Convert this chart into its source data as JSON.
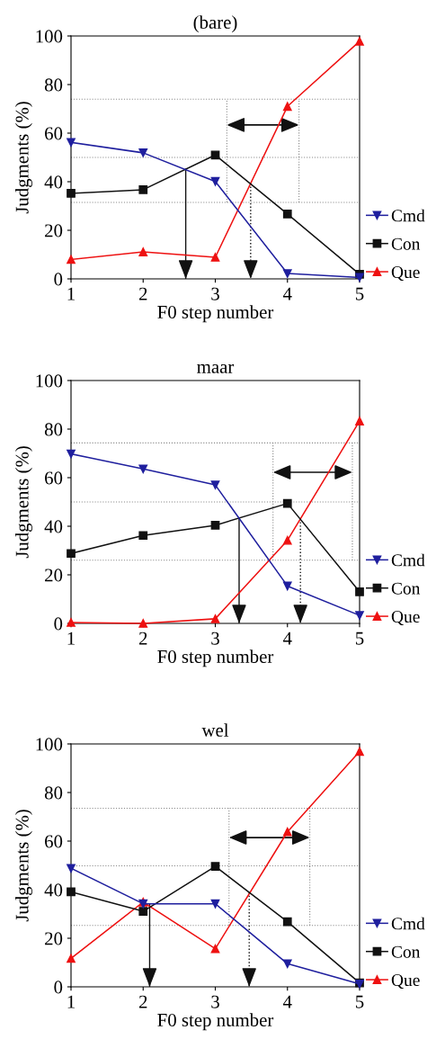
{
  "chart_data": [
    {
      "type": "line",
      "title": "(bare)",
      "xlabel": "F0 step number",
      "ylabel": "Judgments (%)",
      "x": [
        1,
        2,
        3,
        4,
        5
      ],
      "xlim": [
        1,
        5
      ],
      "xticks": [
        1,
        2,
        3,
        4,
        5
      ],
      "ylim": [
        0,
        100
      ],
      "yticks": [
        0,
        20,
        40,
        60,
        80,
        100
      ],
      "grid": false,
      "legend": "right",
      "series": [
        {
          "name": "Cmd",
          "color": "#1f1f9e",
          "marker": "triangle_down",
          "values": [
            56.2,
            51.9,
            40.1,
            2.2,
            0.6
          ]
        },
        {
          "name": "Con",
          "color": "#111111",
          "marker": "square",
          "values": [
            35.2,
            36.7,
            51,
            26.7,
            1.9
          ]
        },
        {
          "name": "Que",
          "color": "#ee1111",
          "marker": "triangle",
          "values": [
            8,
            11.1,
            8.9,
            71,
            97.8
          ]
        }
      ],
      "ref_lines": [
        {
          "axis": "y",
          "value": 74,
          "line_style": "dotted",
          "color": "#888888"
        },
        {
          "axis": "y",
          "value": 50,
          "line_style": "dotted",
          "color": "#888888"
        },
        {
          "axis": "y",
          "value": 31.5,
          "line_style": "dotted",
          "color": "#888888"
        },
        {
          "axis": "x",
          "value": 2.59,
          "line_style": "solid",
          "color": "#111111"
        },
        {
          "axis": "x",
          "value": 3.49,
          "line_style": "dotted",
          "color": "#111111"
        },
        {
          "axis": "x",
          "value": 3.16,
          "line_style": "dotted",
          "color": "#888888"
        },
        {
          "axis": "x",
          "value": 4.16,
          "line_style": "dotted",
          "color": "#888888"
        }
      ]
    },
    {
      "type": "line",
      "title": "maar",
      "xlabel": "F0 step number",
      "ylabel": "Judgments (%)",
      "x": [
        1,
        2,
        3,
        4,
        5
      ],
      "xlim": [
        1,
        5
      ],
      "xticks": [
        1,
        2,
        3,
        4,
        5
      ],
      "ylim": [
        0,
        100
      ],
      "yticks": [
        0,
        20,
        40,
        60,
        80,
        100
      ],
      "grid": false,
      "legend": "right",
      "series": [
        {
          "name": "Cmd",
          "color": "#1f1f9e",
          "marker": "triangle_down",
          "values": [
            69.8,
            63.6,
            57,
            15.4,
            3.3
          ]
        },
        {
          "name": "Con",
          "color": "#111111",
          "marker": "square",
          "values": [
            28.8,
            36.2,
            40.4,
            49.4,
            13
          ]
        },
        {
          "name": "Que",
          "color": "#ee1111",
          "marker": "triangle",
          "values": [
            0.4,
            0,
            1.9,
            34.2,
            83.3
          ]
        }
      ],
      "ref_lines": [
        {
          "axis": "y",
          "value": 74.3,
          "line_style": "dotted",
          "color": "#888888"
        },
        {
          "axis": "y",
          "value": 50,
          "line_style": "dotted",
          "color": "#888888"
        },
        {
          "axis": "y",
          "value": 26,
          "line_style": "dotted",
          "color": "#888888"
        },
        {
          "axis": "x",
          "value": 3.33,
          "line_style": "solid",
          "color": "#111111"
        },
        {
          "axis": "x",
          "value": 4.18,
          "line_style": "dotted",
          "color": "#111111"
        },
        {
          "axis": "x",
          "value": 3.8,
          "line_style": "dotted",
          "color": "#888888"
        },
        {
          "axis": "x",
          "value": 4.9,
          "line_style": "dotted",
          "color": "#888888"
        }
      ]
    },
    {
      "type": "line",
      "title": "wel",
      "xlabel": "F0 step number",
      "ylabel": "Judgments (%)",
      "x": [
        1,
        2,
        3,
        4,
        5
      ],
      "xlim": [
        1,
        5
      ],
      "xticks": [
        1,
        2,
        3,
        4,
        5
      ],
      "ylim": [
        0,
        100
      ],
      "yticks": [
        0,
        20,
        40,
        60,
        80,
        100
      ],
      "grid": false,
      "legend": "right",
      "series": [
        {
          "name": "Cmd",
          "color": "#1f1f9e",
          "marker": "triangle_down",
          "values": [
            48.8,
            34.2,
            34.2,
            9.5,
            1.2
          ]
        },
        {
          "name": "Con",
          "color": "#111111",
          "marker": "square",
          "values": [
            39.1,
            31.1,
            49.6,
            26.8,
            1.6
          ]
        },
        {
          "name": "Que",
          "color": "#ee1111",
          "marker": "triangle",
          "values": [
            11.7,
            34.9,
            15.7,
            63.8,
            96.9
          ]
        }
      ],
      "ref_lines": [
        {
          "axis": "y",
          "value": 73.5,
          "line_style": "dotted",
          "color": "#888888"
        },
        {
          "axis": "y",
          "value": 49.8,
          "line_style": "dotted",
          "color": "#888888"
        },
        {
          "axis": "y",
          "value": 25.3,
          "line_style": "dotted",
          "color": "#888888"
        },
        {
          "axis": "x",
          "value": 2.09,
          "line_style": "solid",
          "color": "#111111"
        },
        {
          "axis": "x",
          "value": 3.47,
          "line_style": "dotted",
          "color": "#111111"
        },
        {
          "axis": "x",
          "value": 3.19,
          "line_style": "dotted",
          "color": "#888888"
        },
        {
          "axis": "x",
          "value": 4.31,
          "line_style": "dotted",
          "color": "#888888"
        }
      ]
    }
  ]
}
